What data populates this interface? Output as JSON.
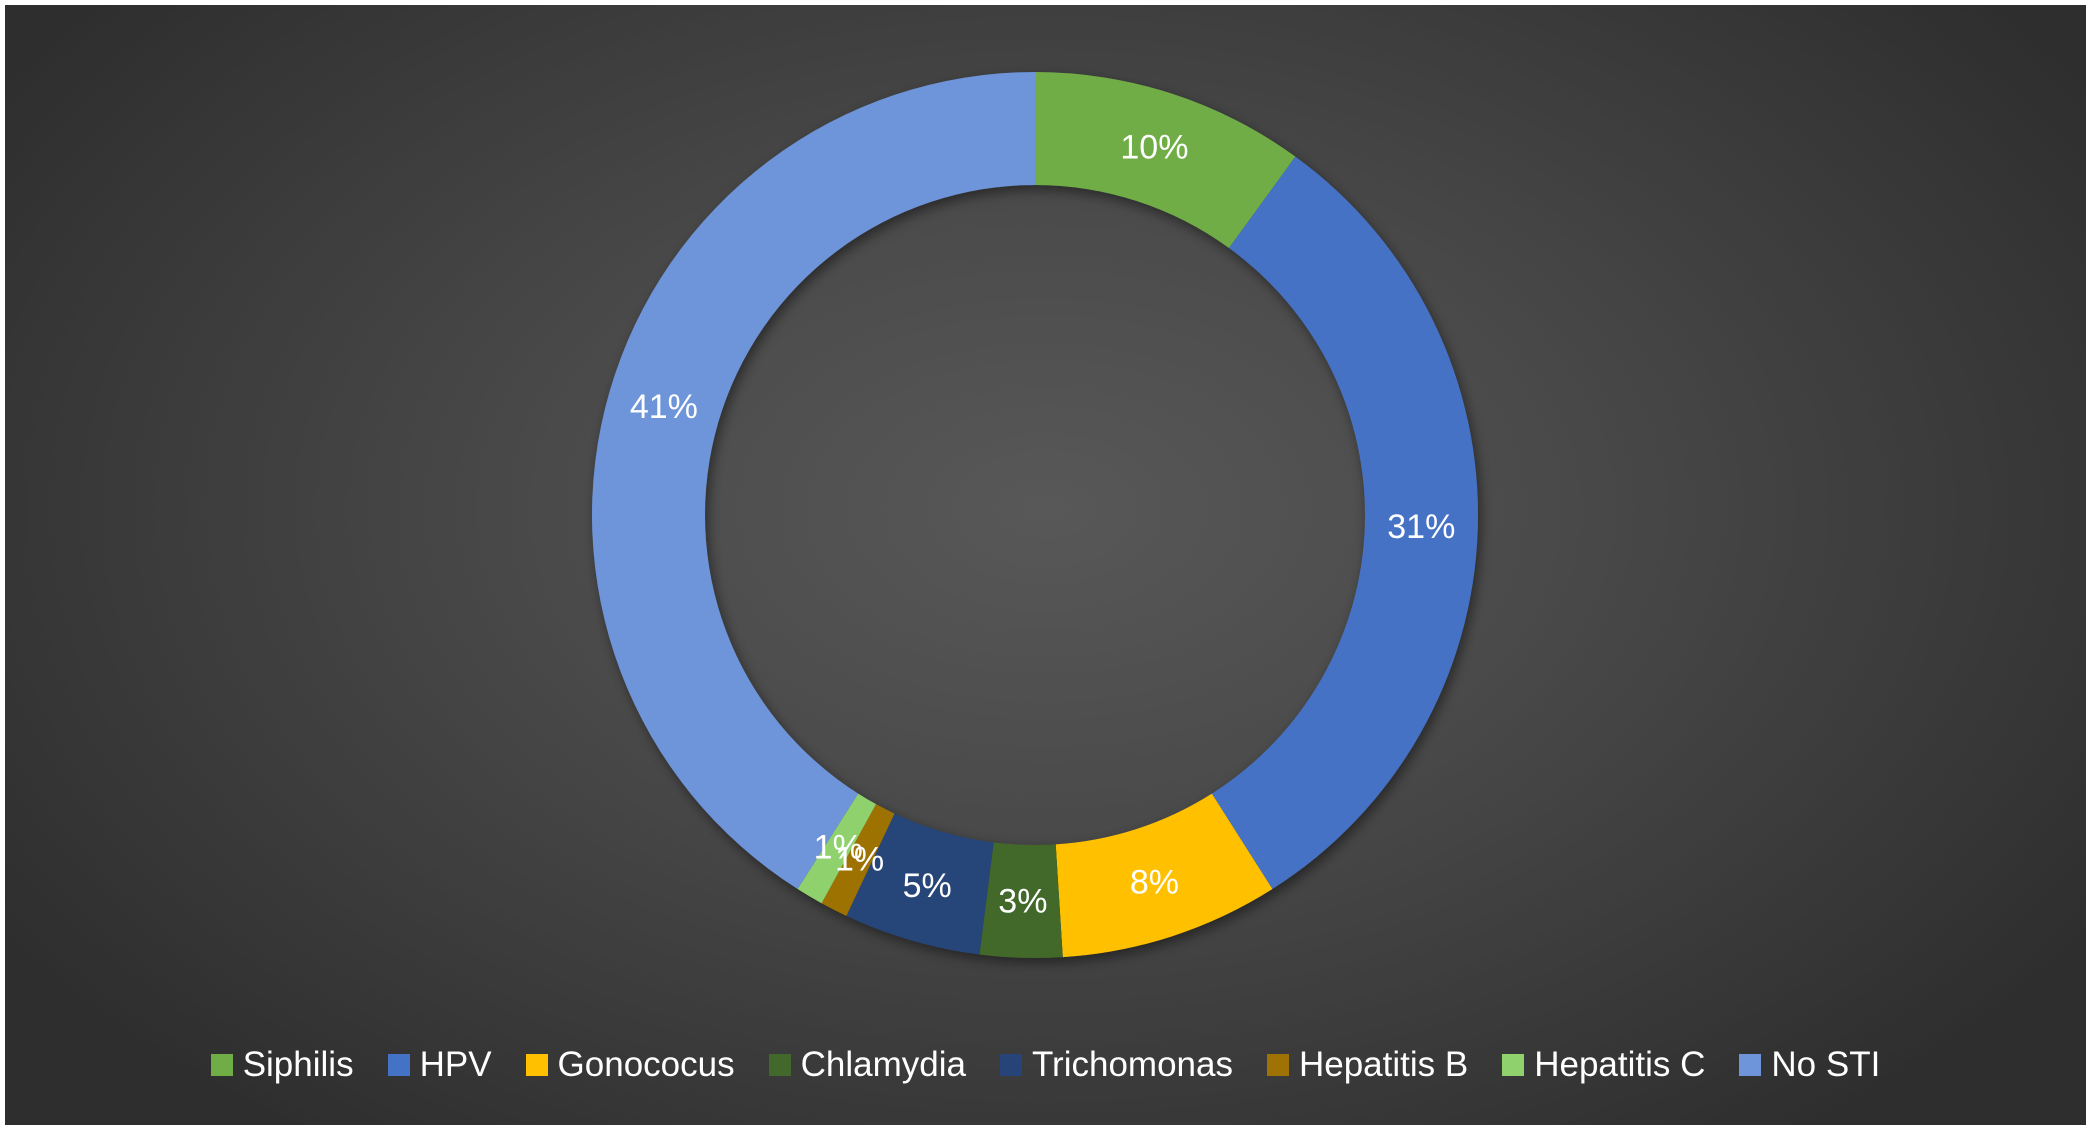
{
  "chart_data": {
    "type": "pie",
    "donut": true,
    "legend_position": "bottom",
    "categories": [
      "Siphilis",
      "HPV",
      "Gonococus",
      "Chlamydia",
      "Trichomonas",
      "Hepatitis B",
      "Hepatitis C",
      "No STI"
    ],
    "values": [
      10,
      31,
      8,
      3,
      5,
      1,
      1,
      41
    ],
    "labels": [
      "10%",
      "31%",
      "8%",
      "3%",
      "5%",
      "1%",
      "1%",
      "41%"
    ],
    "colors": [
      "#70ad47",
      "#4472c4",
      "#ffc000",
      "#43682b",
      "#264478",
      "#9e7205",
      "#8fd16c",
      "#6e94d9"
    ]
  }
}
